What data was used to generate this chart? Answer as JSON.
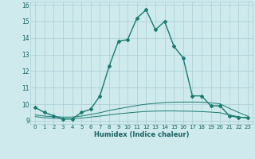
{
  "xlabel": "Humidex (Indice chaleur)",
  "bg_color": "#ceeaed",
  "grid_color": "#aacdd4",
  "line_color": "#1a7a6e",
  "xlim": [
    -0.5,
    23.5
  ],
  "ylim": [
    8.8,
    16.2
  ],
  "yticks": [
    9,
    10,
    11,
    12,
    13,
    14,
    15,
    16
  ],
  "xticks": [
    0,
    1,
    2,
    3,
    4,
    5,
    6,
    7,
    8,
    9,
    10,
    11,
    12,
    13,
    14,
    15,
    16,
    17,
    18,
    19,
    20,
    21,
    22,
    23
  ],
  "series": [
    {
      "x": [
        0,
        1,
        2,
        3,
        4,
        5,
        6,
        7,
        8,
        9,
        10,
        11,
        12,
        13,
        14,
        15,
        16,
        17,
        18,
        19,
        20,
        21,
        22,
        23
      ],
      "y": [
        9.8,
        9.5,
        9.3,
        9.1,
        9.1,
        9.5,
        9.7,
        10.5,
        12.3,
        13.8,
        13.9,
        15.2,
        15.7,
        14.5,
        15.0,
        13.5,
        12.8,
        10.5,
        10.5,
        9.9,
        9.9,
        9.3,
        9.2,
        9.2
      ],
      "marker": "D",
      "markersize": 2.0,
      "linewidth": 1.0,
      "zorder": 3
    },
    {
      "x": [
        0,
        1,
        2,
        3,
        4,
        5,
        6,
        7,
        8,
        9,
        10,
        11,
        12,
        13,
        14,
        15,
        16,
        17,
        18,
        19,
        20,
        21,
        22,
        23
      ],
      "y": [
        9.35,
        9.28,
        9.25,
        9.22,
        9.22,
        9.28,
        9.38,
        9.48,
        9.62,
        9.72,
        9.82,
        9.92,
        10.0,
        10.05,
        10.1,
        10.12,
        10.13,
        10.13,
        10.12,
        10.08,
        10.02,
        9.75,
        9.5,
        9.28
      ],
      "marker": "",
      "markersize": 0,
      "linewidth": 0.7,
      "zorder": 2
    },
    {
      "x": [
        0,
        1,
        2,
        3,
        4,
        5,
        6,
        7,
        8,
        9,
        10,
        11,
        12,
        13,
        14,
        15,
        16,
        17,
        18,
        19,
        20,
        21,
        22,
        23
      ],
      "y": [
        9.25,
        9.18,
        9.15,
        9.12,
        9.12,
        9.16,
        9.22,
        9.28,
        9.35,
        9.42,
        9.47,
        9.52,
        9.56,
        9.58,
        9.59,
        9.59,
        9.58,
        9.57,
        9.55,
        9.52,
        9.48,
        9.35,
        9.24,
        9.15
      ],
      "marker": "",
      "markersize": 0,
      "linewidth": 0.7,
      "zorder": 2
    }
  ]
}
